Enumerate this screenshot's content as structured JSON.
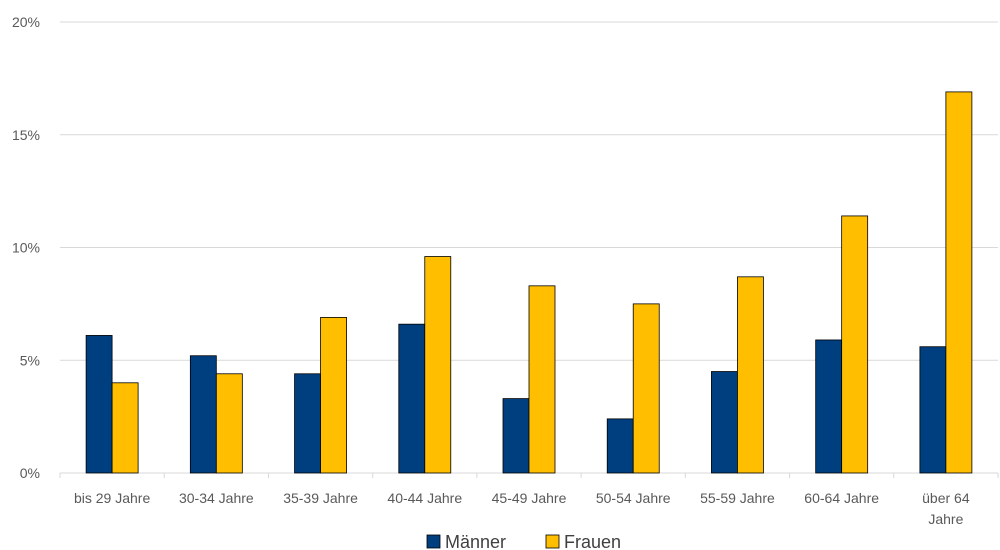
{
  "chart_data": {
    "type": "bar",
    "categories": [
      "bis 29 Jahre",
      "30-34 Jahre",
      "35-39 Jahre",
      "40-44 Jahre",
      "45-49 Jahre",
      "50-54 Jahre",
      "55-59 Jahre",
      "60-64 Jahre",
      "über 64 Jahre"
    ],
    "category_lines": [
      [
        "bis 29 Jahre"
      ],
      [
        "30-34 Jahre"
      ],
      [
        "35-39 Jahre"
      ],
      [
        "40-44 Jahre"
      ],
      [
        "45-49 Jahre"
      ],
      [
        "50-54 Jahre"
      ],
      [
        "55-59 Jahre"
      ],
      [
        "60-64 Jahre"
      ],
      [
        "über 64",
        "Jahre"
      ]
    ],
    "series": [
      {
        "name": "Männer",
        "color": "#003f7f",
        "values": [
          6.1,
          5.2,
          4.4,
          6.6,
          3.3,
          2.4,
          4.5,
          5.9,
          5.6
        ]
      },
      {
        "name": "Frauen",
        "color": "#ffbf00",
        "values": [
          4.0,
          4.4,
          6.9,
          9.6,
          8.3,
          7.5,
          8.7,
          11.4,
          16.9
        ]
      }
    ],
    "ylim": [
      0,
      20
    ],
    "yticks": [
      0,
      5,
      10,
      15,
      20
    ],
    "ytick_labels": [
      "0%",
      "5%",
      "10%",
      "15%",
      "20%"
    ],
    "grid": true,
    "legend_position": "bottom"
  }
}
